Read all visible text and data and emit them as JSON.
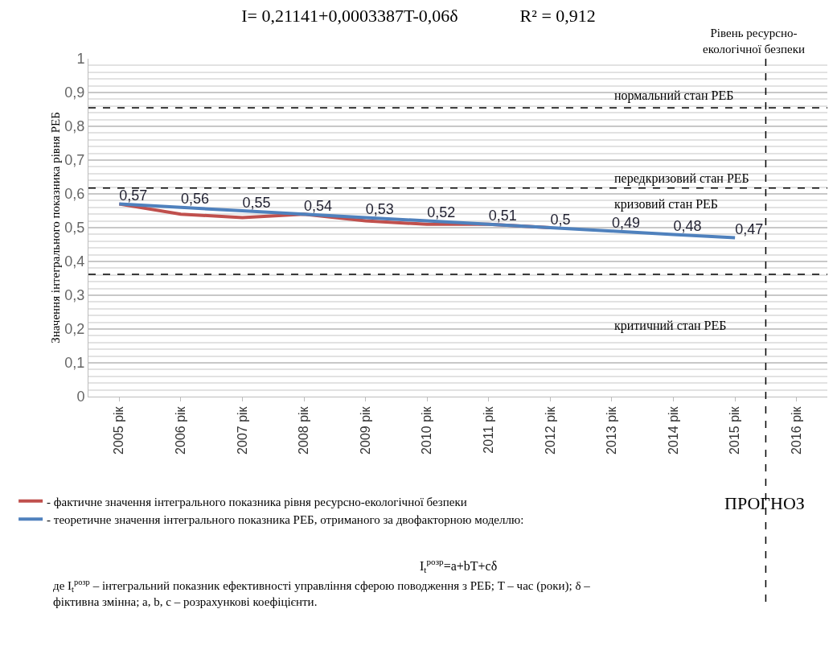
{
  "chart_data": {
    "type": "line",
    "title": "I= 0,21141+0,0003387T-0,06δ              R² = 0,912",
    "ylabel": "Значення інтегрального показника рівня РЕБ",
    "x": [
      2005,
      2006,
      2007,
      2008,
      2009,
      2010,
      2011,
      2012,
      2013,
      2014,
      2015
    ],
    "xlim": [
      2004.5,
      2016.5
    ],
    "xticks": [
      {
        "value": 2005,
        "label": "2005 рік"
      },
      {
        "value": 2006,
        "label": "2006 рік"
      },
      {
        "value": 2007,
        "label": "2007 рік"
      },
      {
        "value": 2008,
        "label": "2008 рік"
      },
      {
        "value": 2009,
        "label": "2009 рік"
      },
      {
        "value": 2010,
        "label": "2010 рік"
      },
      {
        "value": 2011,
        "label": "2011 рік"
      },
      {
        "value": 2012,
        "label": "2012 рік"
      },
      {
        "value": 2013,
        "label": "2013 рік"
      },
      {
        "value": 2014,
        "label": "2014 рік"
      },
      {
        "value": 2015,
        "label": "2015 рік"
      },
      {
        "value": 2016,
        "label": "2016 рік"
      }
    ],
    "series": [
      {
        "name": "- фактичне значення інтегрального показника рівня ресурсно-екологічної безпеки",
        "color": "#c0504d",
        "values": [
          0.57,
          0.54,
          0.53,
          0.54,
          0.52,
          0.51,
          0.51,
          0.5,
          null,
          null,
          null
        ]
      },
      {
        "name": "- теоретичне значення інтегрального показника РЕБ, отриманого за двофакторною моделлю:",
        "color": "#4f81bd",
        "values": [
          0.57,
          0.56,
          0.55,
          0.54,
          0.53,
          0.52,
          0.51,
          0.5,
          0.49,
          0.48,
          0.47
        ],
        "value_labels": [
          "0,57",
          "0,56",
          "0,55",
          "0,54",
          "0,53",
          "0,52",
          "0,51",
          "0,5",
          "0,49",
          "0,48",
          "0,47"
        ]
      }
    ],
    "ylim": [
      0,
      1
    ],
    "yticks": [
      0,
      {
        "value": 0.1,
        "label": "0,1"
      },
      {
        "value": 0.2,
        "label": "0,2"
      },
      {
        "value": 0.3,
        "label": "0,3"
      },
      {
        "value": 0.4,
        "label": "0,4"
      },
      {
        "value": 0.5,
        "label": "0,5"
      },
      {
        "value": 0.6,
        "label": "0,6"
      },
      {
        "value": 0.7,
        "label": "0,7"
      },
      {
        "value": 0.8,
        "label": "0,8"
      },
      {
        "value": 0.9,
        "label": "0,9"
      },
      1
    ],
    "grid": "y",
    "legend": "bottom left",
    "ref_lines": [
      {
        "axis": "y",
        "value": 0.855,
        "line_style": "dashed",
        "color": "#000000"
      },
      {
        "axis": "y",
        "value": 0.617,
        "line_style": "dashed",
        "color": "#000000"
      },
      {
        "axis": "y",
        "value": 0.362,
        "line_style": "dashed",
        "color": "#000000"
      },
      {
        "axis": "x",
        "value": 2015.5,
        "line_style": "dashed",
        "color": "#000000"
      }
    ],
    "annotations": [
      "Рівень ресурсно-екологічної безпеки",
      "нормальний стан РЕБ",
      "передкризовий стан РЕБ",
      "кризовий стан РЕБ",
      "критичний стан РЕБ",
      "ПРОГНОЗ",
      "I$_{t}$$^{розр}$=a+bT+cδ",
      "де I$_{t}$$^{розр}$ – інтегральний показник ефективності управління сферою поводження з РЕБ; T – час (роки); δ – фіктивна змінна; a, b, c – розрахункові коефіцієнти."
    ]
  }
}
